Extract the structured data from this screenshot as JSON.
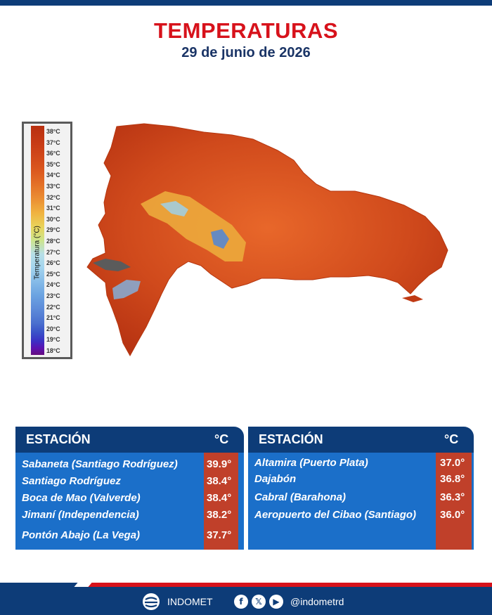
{
  "header": {
    "title": "TEMPERATURAS",
    "date": "29 de junio de 2026"
  },
  "legend": {
    "axis_label": "Temperatura (°C)",
    "ticks": [
      "38°C",
      "37°C",
      "36°C",
      "35°C",
      "34°C",
      "33°C",
      "32°C",
      "31°C",
      "30°C",
      "29°C",
      "28°C",
      "27°C",
      "26°C",
      "25°C",
      "24°C",
      "23°C",
      "22°C",
      "21°C",
      "20°C",
      "19°C",
      "18°C"
    ]
  },
  "tables": {
    "left": {
      "header_station": "ESTACIÓN",
      "header_unit": "°C",
      "rows": [
        {
          "station": "Sabaneta (Santiago Rodríguez)",
          "temp": "39.9°"
        },
        {
          "station": "Santiago Rodríguez",
          "temp": "38.4°"
        },
        {
          "station": "Boca de Mao (Valverde)",
          "temp": "38.4°"
        },
        {
          "station": "Jimaní (Independencia)",
          "temp": "38.2°"
        },
        {
          "station": "Pontón Abajo (La Vega)",
          "temp": "37.7°"
        }
      ]
    },
    "right": {
      "header_station": "ESTACIÓN",
      "header_unit": "°C",
      "rows": [
        {
          "station": "Altamira (Puerto Plata)",
          "temp": "37.0°"
        },
        {
          "station": "Dajabón",
          "temp": "36.8°"
        },
        {
          "station": "Cabral (Barahona)",
          "temp": "36.3°"
        },
        {
          "station": "Aeropuerto del Cibao (Santiago)",
          "temp": "36.0°"
        }
      ]
    }
  },
  "footer": {
    "brand": "INDOMET",
    "handle": "@indometrd",
    "social_icons": [
      "facebook-icon",
      "x-icon",
      "youtube-icon"
    ]
  },
  "colors": {
    "title_red": "#d7121b",
    "navy": "#0d3c78",
    "table_blue": "#1b6fc9",
    "temp_red": "#c0402a"
  }
}
